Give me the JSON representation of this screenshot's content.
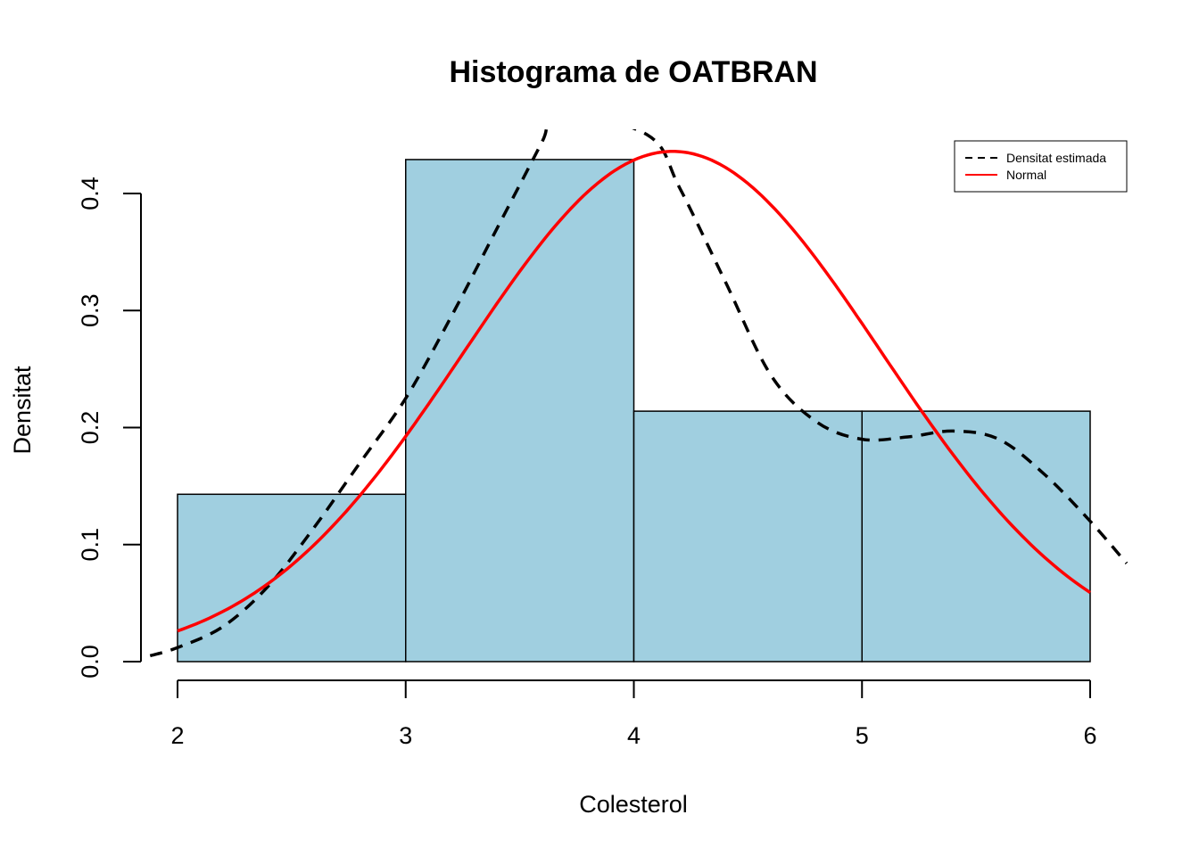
{
  "chart_data": {
    "type": "histogram",
    "title": "Histograma de OATBRAN",
    "xlabel": "Colesterol",
    "ylabel": "Densitat",
    "xlim": [
      1.84,
      6.2
    ],
    "ylim": [
      0,
      0.46
    ],
    "x_ticks": [
      2,
      3,
      4,
      5,
      6
    ],
    "x_tick_labels": [
      "2",
      "3",
      "4",
      "5",
      "6"
    ],
    "y_ticks": [
      0.0,
      0.1,
      0.2,
      0.3,
      0.4
    ],
    "y_tick_labels": [
      "0.0",
      "0.1",
      "0.2",
      "0.3",
      "0.4"
    ],
    "bins": [
      {
        "from": 2,
        "to": 3,
        "density": 0.143
      },
      {
        "from": 3,
        "to": 4,
        "density": 0.429
      },
      {
        "from": 4,
        "to": 5,
        "density": 0.214
      },
      {
        "from": 5,
        "to": 6,
        "density": 0.214
      }
    ],
    "bar_color": "#a0cfe0",
    "series": [
      {
        "name": "Densitat estimada",
        "style": "dashed",
        "color": "#000000",
        "x": [
          1.88,
          2.0,
          2.2,
          2.4,
          2.6,
          2.8,
          3.0,
          3.2,
          3.4,
          3.6,
          3.66,
          4.06,
          4.2,
          4.4,
          4.6,
          4.8,
          5.0,
          5.2,
          5.4,
          5.6,
          5.8,
          6.0,
          6.16
        ],
        "y": [
          0.005,
          0.012,
          0.03,
          0.065,
          0.115,
          0.17,
          0.225,
          0.295,
          0.37,
          0.445,
          0.47,
          0.45,
          0.405,
          0.325,
          0.245,
          0.205,
          0.19,
          0.192,
          0.197,
          0.19,
          0.16,
          0.12,
          0.084
        ]
      },
      {
        "name": "Normal",
        "style": "solid",
        "color": "#ff0000",
        "normal_mean": 4.17,
        "normal_sd": 0.915,
        "x_range": [
          2,
          6
        ]
      }
    ],
    "legend": {
      "position": "top-right",
      "entries": [
        "Densitat estimada",
        "Normal"
      ]
    },
    "grid": false
  }
}
